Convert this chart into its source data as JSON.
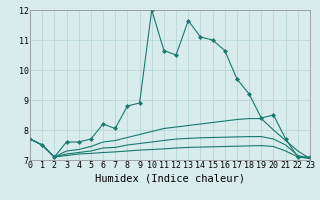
{
  "background_color": "#d7eceb",
  "grid_color": "#b8d8d5",
  "line_color": "#1a7870",
  "x_min": 0,
  "x_max": 23,
  "y_min": 7,
  "y_max": 12,
  "xlabel": "Humidex (Indice chaleur)",
  "xlabel_fontsize": 7.5,
  "tick_fontsize": 6.0,
  "lines": [
    {
      "x": [
        0,
        1,
        2,
        3,
        4,
        5,
        6,
        7,
        8,
        9,
        10,
        11,
        12,
        13,
        14,
        15,
        16,
        17,
        18,
        19,
        20,
        21,
        22,
        23
      ],
      "y": [
        7.7,
        7.5,
        7.1,
        7.6,
        7.6,
        7.7,
        8.2,
        8.05,
        8.8,
        8.9,
        12.0,
        10.65,
        10.5,
        11.65,
        11.1,
        11.0,
        10.65,
        9.7,
        9.2,
        8.4,
        8.5,
        7.7,
        7.1,
        7.1
      ],
      "marker": "D",
      "markersize": 2.0,
      "linewidth": 0.8
    },
    {
      "x": [
        0,
        1,
        2,
        3,
        4,
        5,
        6,
        7,
        8,
        9,
        10,
        11,
        12,
        13,
        14,
        15,
        16,
        17,
        18,
        19,
        20,
        21,
        22,
        23
      ],
      "y": [
        7.7,
        7.5,
        7.1,
        7.15,
        7.2,
        7.22,
        7.25,
        7.27,
        7.3,
        7.33,
        7.35,
        7.37,
        7.4,
        7.42,
        7.43,
        7.44,
        7.45,
        7.46,
        7.47,
        7.48,
        7.45,
        7.3,
        7.1,
        7.05
      ],
      "marker": null,
      "markersize": 0,
      "linewidth": 0.8
    },
    {
      "x": [
        0,
        1,
        2,
        3,
        4,
        5,
        6,
        7,
        8,
        9,
        10,
        11,
        12,
        13,
        14,
        15,
        16,
        17,
        18,
        19,
        20,
        21,
        22,
        23
      ],
      "y": [
        7.7,
        7.5,
        7.1,
        7.2,
        7.25,
        7.3,
        7.4,
        7.42,
        7.5,
        7.55,
        7.6,
        7.65,
        7.7,
        7.72,
        7.74,
        7.75,
        7.76,
        7.77,
        7.78,
        7.78,
        7.7,
        7.5,
        7.15,
        7.05
      ],
      "marker": null,
      "markersize": 0,
      "linewidth": 0.8
    },
    {
      "x": [
        0,
        1,
        2,
        3,
        4,
        5,
        6,
        7,
        8,
        9,
        10,
        11,
        12,
        13,
        14,
        15,
        16,
        17,
        18,
        19,
        20,
        21,
        22,
        23
      ],
      "y": [
        7.7,
        7.5,
        7.1,
        7.3,
        7.35,
        7.45,
        7.6,
        7.65,
        7.75,
        7.85,
        7.95,
        8.05,
        8.1,
        8.15,
        8.2,
        8.25,
        8.3,
        8.35,
        8.38,
        8.38,
        8.0,
        7.65,
        7.3,
        7.05
      ],
      "marker": null,
      "markersize": 0,
      "linewidth": 0.8
    }
  ],
  "yticks": [
    7,
    8,
    9,
    10,
    11,
    12
  ],
  "xticks": [
    0,
    1,
    2,
    3,
    4,
    5,
    6,
    7,
    8,
    9,
    10,
    11,
    12,
    13,
    14,
    15,
    16,
    17,
    18,
    19,
    20,
    21,
    22,
    23
  ]
}
